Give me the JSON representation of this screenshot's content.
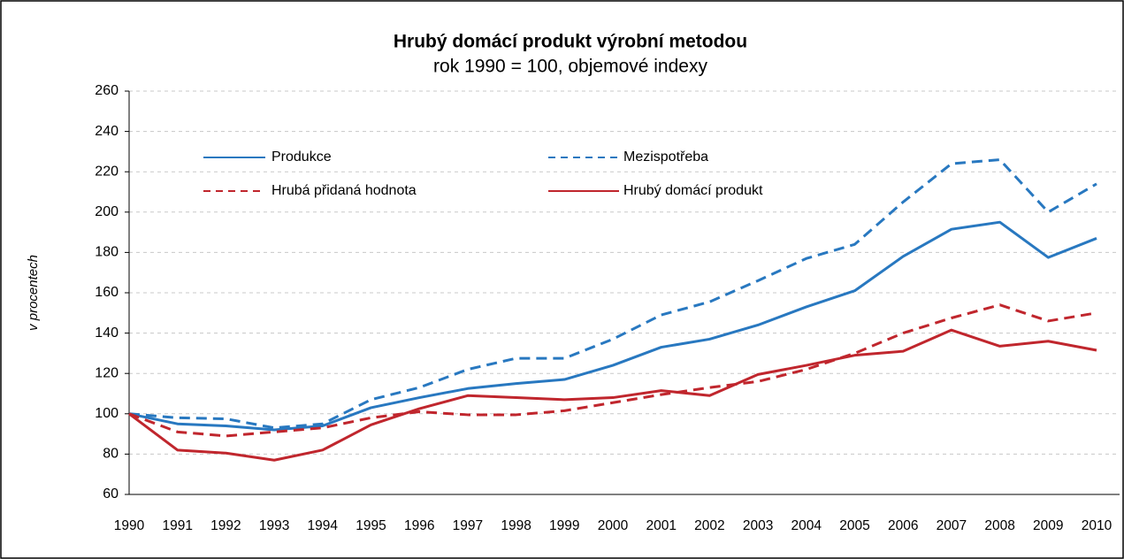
{
  "chart_data": {
    "type": "line",
    "title": "Hrubý domácí produkt  výrobní metodou",
    "subtitle": "rok 1990 = 100, objemové indexy",
    "y_label": "v procentech",
    "categories": [
      "1990",
      "1991",
      "1992",
      "1993",
      "1994",
      "1995",
      "1996",
      "1997",
      "1998",
      "1999",
      "2000",
      "2001",
      "2002",
      "2003",
      "2004",
      "2005",
      "2006",
      "2007",
      "2008",
      "2009",
      "2010"
    ],
    "series": [
      {
        "name": "Produkce",
        "color": "#2878c0",
        "dashed": false,
        "values": [
          100,
          95,
          94,
          92,
          94,
          103,
          108,
          112.5,
          115,
          117,
          124,
          133,
          137,
          144,
          153,
          161,
          178,
          191.5,
          195,
          177.5,
          187
        ]
      },
      {
        "name": "Mezispotřeba",
        "color": "#2878c0",
        "dashed": true,
        "values": [
          100,
          98,
          97.5,
          93,
          95,
          107,
          113,
          122,
          127.5,
          127.5,
          137,
          149,
          155.5,
          166,
          177,
          184,
          205,
          224,
          226,
          200,
          214
        ]
      },
      {
        "name": "Hrubá přidaná hodnota",
        "color": "#c0262d",
        "dashed": true,
        "values": [
          100,
          91,
          89,
          91,
          93,
          98,
          101,
          99.5,
          99.5,
          101.5,
          105.5,
          109.5,
          113,
          116,
          122,
          130,
          140,
          147.5,
          154,
          146,
          150
        ]
      },
      {
        "name": "Hrubý domácí produkt",
        "color": "#c0262d",
        "dashed": false,
        "values": [
          100,
          82,
          80.5,
          77,
          82,
          94.5,
          102.5,
          109,
          108,
          107,
          108,
          111.5,
          109,
          119.5,
          124,
          129,
          131,
          141.5,
          133.5,
          136,
          131.5
        ]
      }
    ],
    "ylim": [
      60,
      260
    ],
    "yticks": [
      60,
      80,
      100,
      120,
      140,
      160,
      180,
      200,
      220,
      240,
      260
    ],
    "grid": true
  }
}
